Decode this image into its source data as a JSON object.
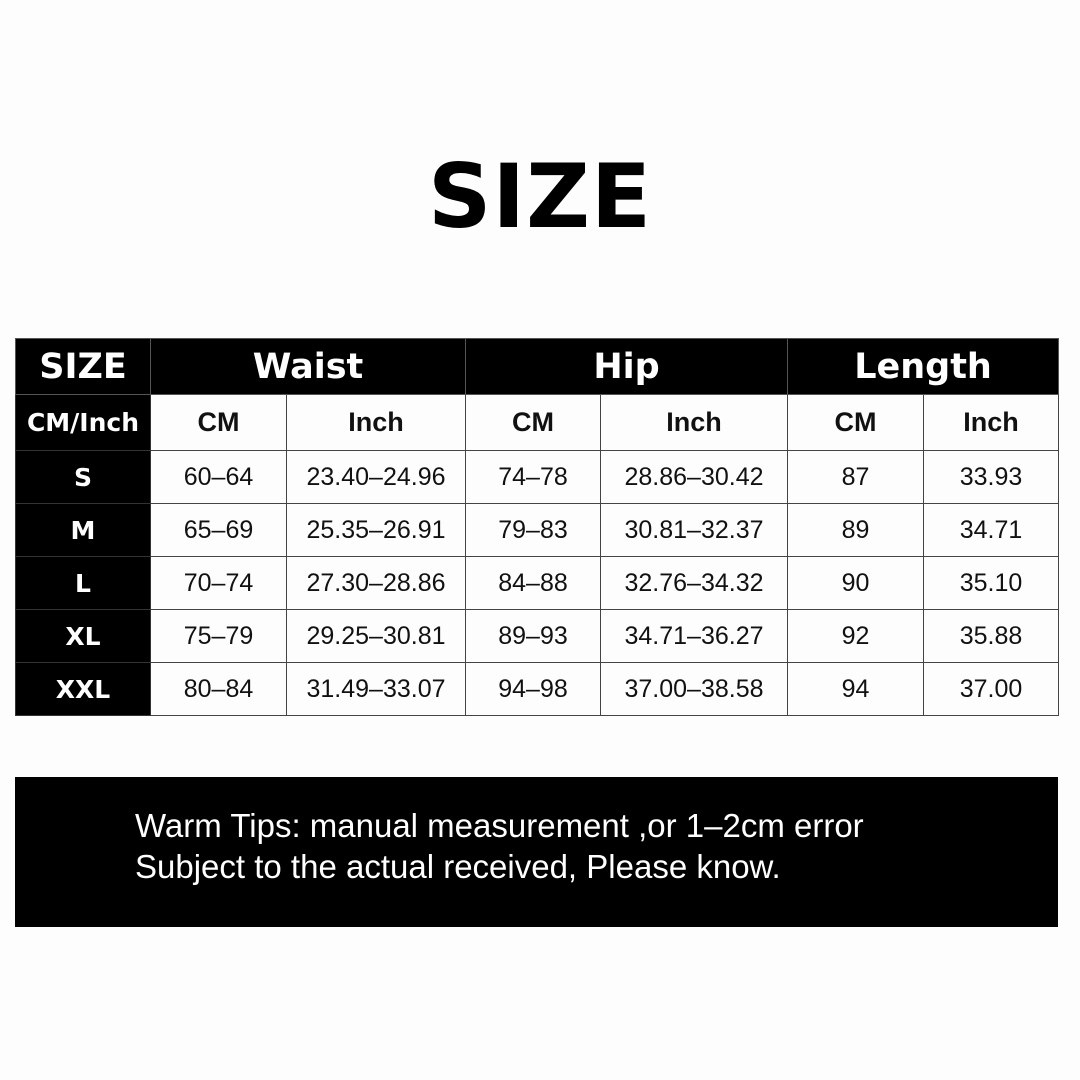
{
  "title": "SIZE",
  "table": {
    "corner_top": "SIZE",
    "corner_sub": "CM/Inch",
    "groups": [
      "Waist",
      "Hip",
      "Length"
    ],
    "sub_headers": [
      "CM",
      "Inch",
      "CM",
      "Inch",
      "CM",
      "Inch"
    ],
    "rows": [
      {
        "size": "S",
        "cells": [
          "60–64",
          "23.40–24.96",
          "74–78",
          "28.86–30.42",
          "87",
          "33.93"
        ]
      },
      {
        "size": "M",
        "cells": [
          "65–69",
          "25.35–26.91",
          "79–83",
          "30.81–32.37",
          "89",
          "34.71"
        ]
      },
      {
        "size": "L",
        "cells": [
          "70–74",
          "27.30–28.86",
          "84–88",
          "32.76–34.32",
          "90",
          "35.10"
        ]
      },
      {
        "size": "XL",
        "cells": [
          "75–79",
          "29.25–30.81",
          "89–93",
          "34.71–36.27",
          "92",
          "35.88"
        ]
      },
      {
        "size": "XXL",
        "cells": [
          "80–84",
          "31.49–33.07",
          "94–98",
          "37.00–38.58",
          "94",
          "37.00"
        ]
      }
    ]
  },
  "tips": {
    "line1": "Warm Tips: manual measurement ,or 1–2cm error",
    "line2": "Subject to the actual received, Please know."
  }
}
